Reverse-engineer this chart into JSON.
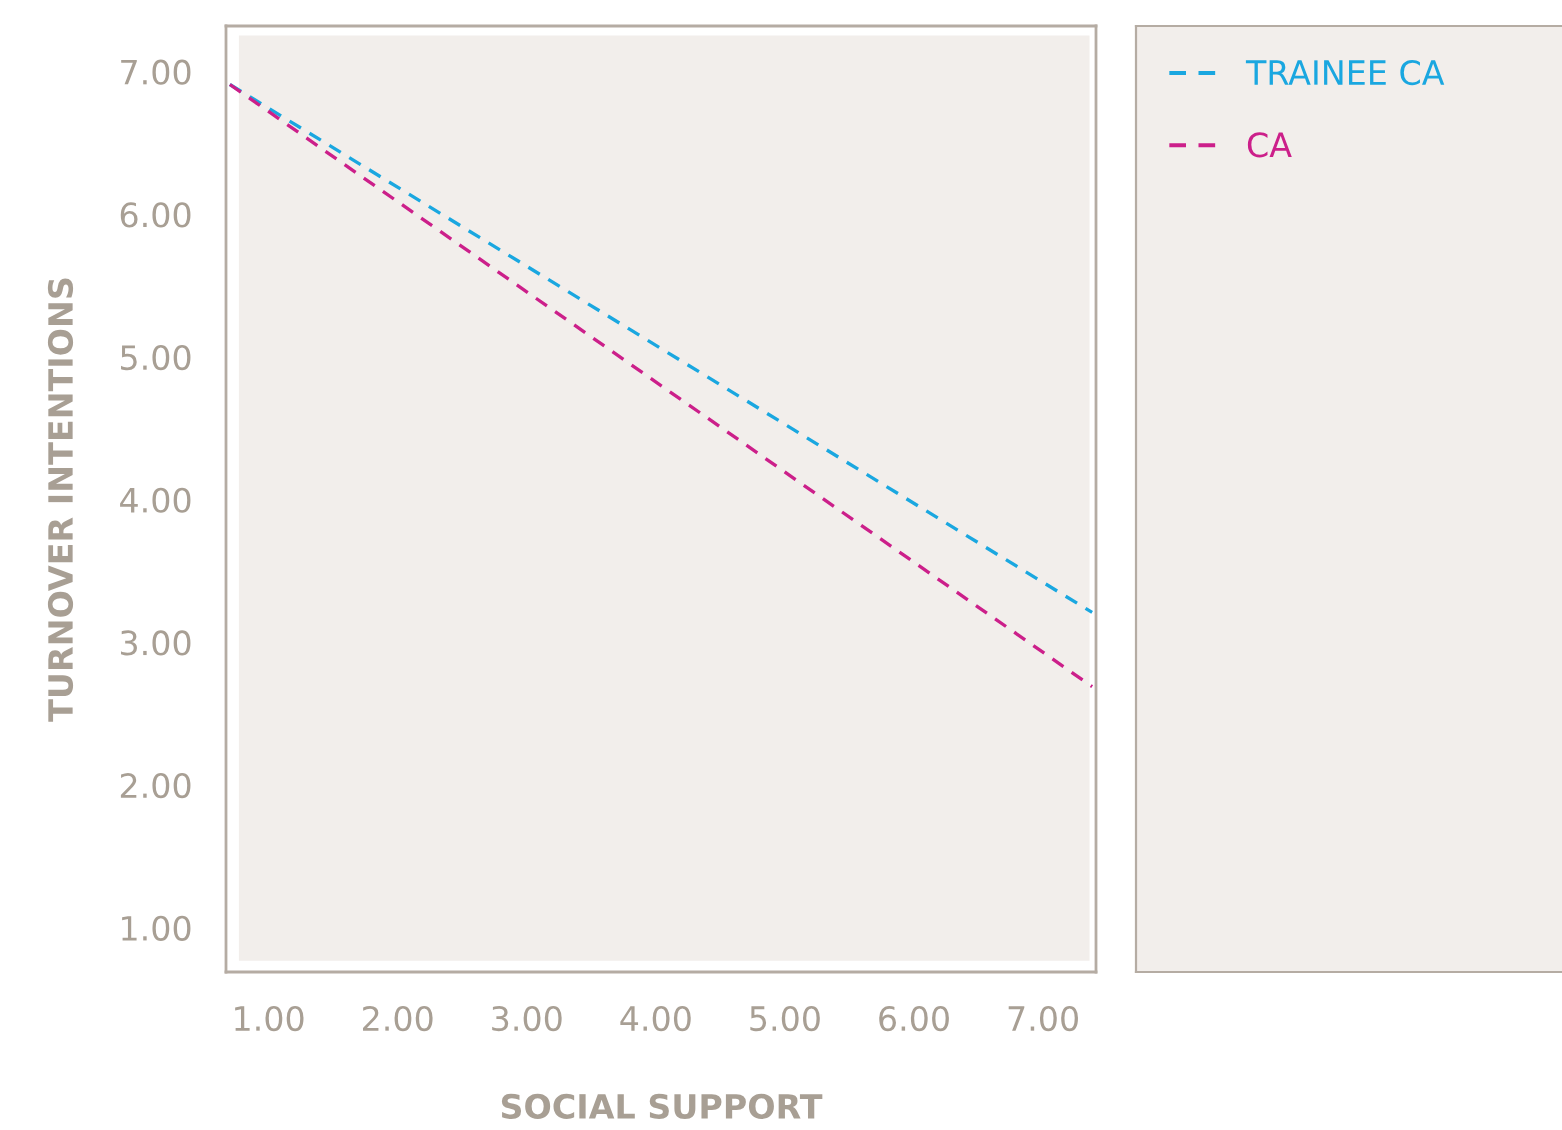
{
  "chart_data": {
    "type": "line",
    "xlabel": "SOCIAL SUPPORT",
    "ylabel": "TURNOVER INTENTIONS",
    "xlim": [
      0.67,
      7.41
    ],
    "ylim": [
      0.69,
      7.32
    ],
    "xticks": [
      {
        "value": 1,
        "label": "1.00"
      },
      {
        "value": 2,
        "label": "2.00"
      },
      {
        "value": 3,
        "label": "3.00"
      },
      {
        "value": 4,
        "label": "4.00"
      },
      {
        "value": 5,
        "label": "5.00"
      },
      {
        "value": 6,
        "label": "6.00"
      },
      {
        "value": 7,
        "label": "7.00"
      }
    ],
    "yticks": [
      {
        "value": 1,
        "label": "1.00"
      },
      {
        "value": 2,
        "label": "2.00"
      },
      {
        "value": 3,
        "label": "3.00"
      },
      {
        "value": 4,
        "label": "4.00"
      },
      {
        "value": 5,
        "label": "5.00"
      },
      {
        "value": 6,
        "label": "6.00"
      },
      {
        "value": 7,
        "label": "7.00"
      }
    ],
    "x": [
      0.7,
      7.38
    ],
    "series": [
      {
        "name": "TRAINEE CA",
        "color": "#1aa7e0",
        "values": [
          6.91,
          3.21
        ]
      },
      {
        "name": "CA",
        "color": "#cc1f8a",
        "values": [
          6.91,
          2.69
        ]
      }
    ],
    "line_style": "dashed",
    "marker": "none",
    "grid": false,
    "legend": "right"
  }
}
